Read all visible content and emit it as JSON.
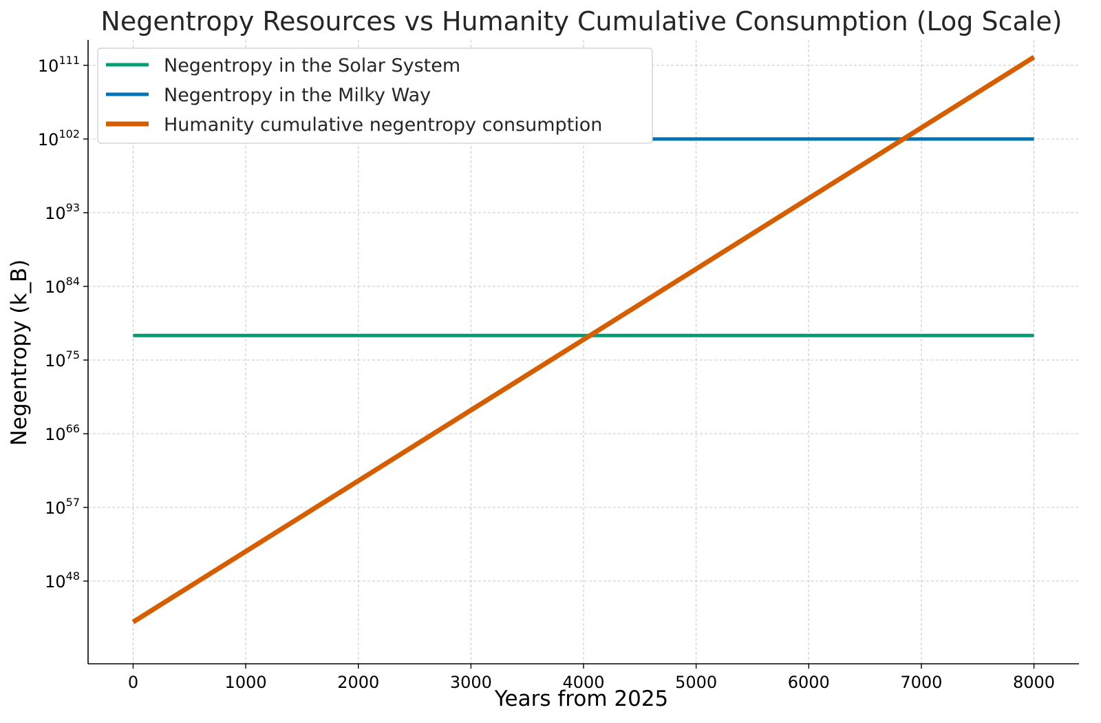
{
  "chart_data": {
    "type": "line",
    "title": "Negentropy Resources vs Humanity Cumulative Consumption (Log Scale)",
    "xlabel": "Years from 2025",
    "ylabel": "Negentropy (k_B)",
    "xlim": [
      -400,
      8400
    ],
    "x_ticks": [
      0,
      1000,
      2000,
      3000,
      4000,
      5000,
      6000,
      7000,
      8000
    ],
    "y_scale": "log",
    "ylim_exponent": [
      37.9,
      114.1
    ],
    "y_ticks": [
      {
        "base": "10",
        "exponent": 48,
        "label_value": "10^48"
      },
      {
        "base": "10",
        "exponent": 57,
        "label_value": "10^57"
      },
      {
        "base": "10",
        "exponent": 66,
        "label_value": "10^66"
      },
      {
        "base": "10",
        "exponent": 75,
        "label_value": "10^75"
      },
      {
        "base": "10",
        "exponent": 84,
        "label_value": "10^84"
      },
      {
        "base": "10",
        "exponent": 93,
        "label_value": "10^93"
      },
      {
        "base": "10",
        "exponent": 102,
        "label_value": "10^102"
      },
      {
        "base": "10",
        "exponent": 111,
        "label_value": "10^111"
      }
    ],
    "grid": true,
    "legend_position": "top-left",
    "series": [
      {
        "name": "Negentropy in the Solar System",
        "color": "#029e73",
        "line_width": 5,
        "x": [
          0,
          8000
        ],
        "y_log10": [
          78.0,
          78.0
        ]
      },
      {
        "name": "Negentropy in the Milky Way",
        "color": "#0173b2",
        "line_width": 5,
        "x": [
          0,
          8000
        ],
        "y_log10": [
          102.0,
          102.0
        ]
      },
      {
        "name": "Humanity cumulative negentropy consumption",
        "color": "#d55e00",
        "line_width": 7,
        "x": [
          0,
          8000
        ],
        "y_log10": [
          43.0,
          112.0
        ]
      }
    ]
  }
}
